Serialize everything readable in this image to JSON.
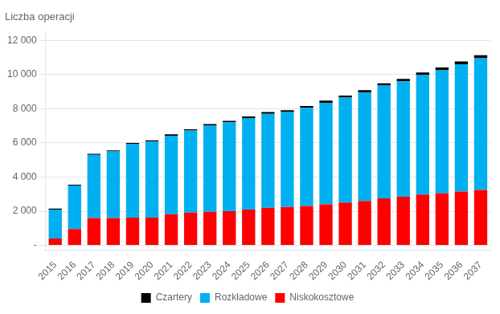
{
  "chart_data": {
    "type": "bar",
    "title": "Liczba operacji",
    "categories": [
      "2015",
      "2016",
      "2017",
      "2018",
      "2019",
      "2020",
      "2021",
      "2022",
      "2023",
      "2024",
      "2025",
      "2026",
      "2027",
      "2028",
      "2029",
      "2030",
      "2031",
      "2032",
      "2033",
      "2034",
      "2035",
      "2036",
      "2037"
    ],
    "series": [
      {
        "name": "Czartery",
        "color": "#000000",
        "values": [
          50,
          50,
          60,
          60,
          70,
          70,
          80,
          80,
          90,
          90,
          100,
          100,
          110,
          110,
          120,
          120,
          130,
          130,
          140,
          150,
          160,
          170,
          180
        ]
      },
      {
        "name": "Rozkładowe",
        "color": "#00B0F0",
        "values": [
          1700,
          2550,
          3700,
          3900,
          4300,
          4450,
          4600,
          4800,
          5050,
          5200,
          5350,
          5500,
          5550,
          5750,
          5950,
          6150,
          6350,
          6600,
          6750,
          7000,
          7200,
          7450,
          7700
        ]
      },
      {
        "name": "Niskokosztowe",
        "color": "#FF0000",
        "values": [
          400,
          950,
          1600,
          1600,
          1620,
          1630,
          1820,
          1920,
          1960,
          2000,
          2100,
          2200,
          2250,
          2300,
          2400,
          2500,
          2600,
          2750,
          2850,
          2970,
          3050,
          3150,
          3250
        ]
      }
    ],
    "stacked": true,
    "ylim": [
      -300,
      12500
    ],
    "yticks": [
      {
        "value": 0,
        "label": "-"
      },
      {
        "value": 2000,
        "label": "2 000"
      },
      {
        "value": 4000,
        "label": "4 000"
      },
      {
        "value": 6000,
        "label": "6 000"
      },
      {
        "value": 8000,
        "label": "8 000"
      },
      {
        "value": 10000,
        "label": "10 000"
      },
      {
        "value": 12000,
        "label": "12 000"
      }
    ],
    "grid": true,
    "legend": "bottom"
  }
}
